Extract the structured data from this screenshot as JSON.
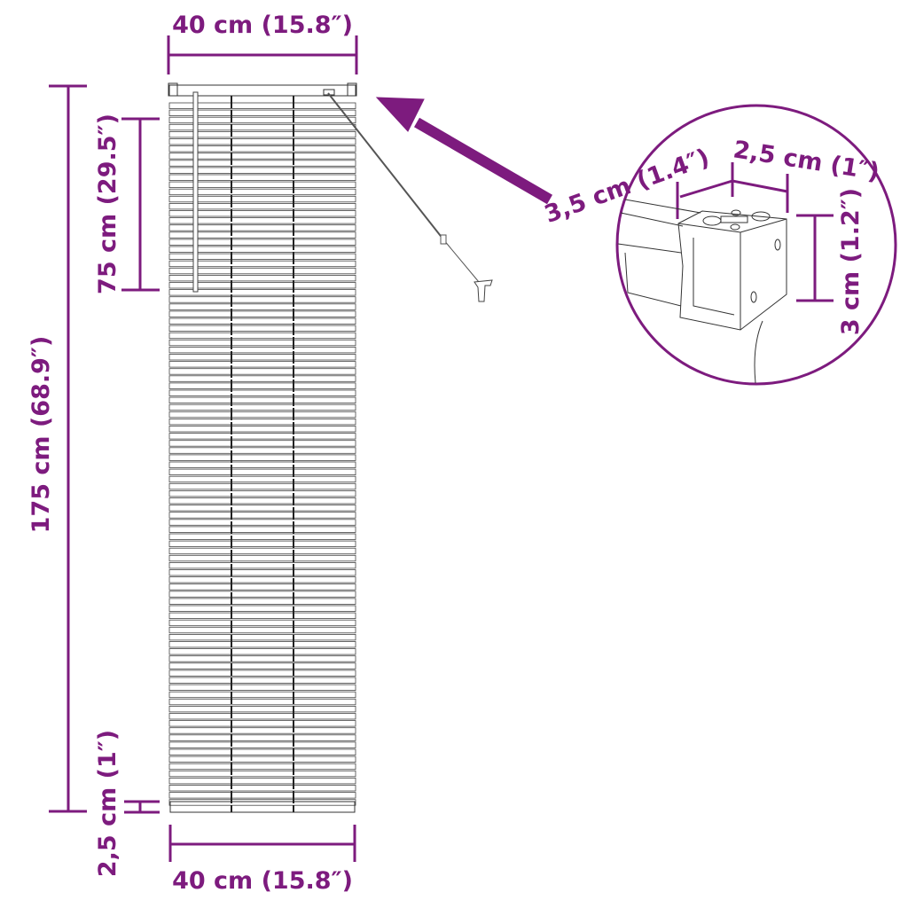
{
  "colors": {
    "accent": "#7d1b7e",
    "line": "#333333"
  },
  "dimensions": {
    "width_top": "40 cm (15.8″)",
    "width_bottom": "40 cm (15.8″)",
    "height_total": "175 cm (68.9″)",
    "height_control": "75 cm (29.5″)",
    "bottom_rail": "2,5 cm (1″)",
    "bracket_depth": "3,5 cm (1.4″)",
    "bracket_width": "2,5 cm (1″)",
    "bracket_height": "3 cm (1.2″)"
  },
  "icons": {
    "pointer": "arrow-icon",
    "detail": "magnifier-circle"
  }
}
